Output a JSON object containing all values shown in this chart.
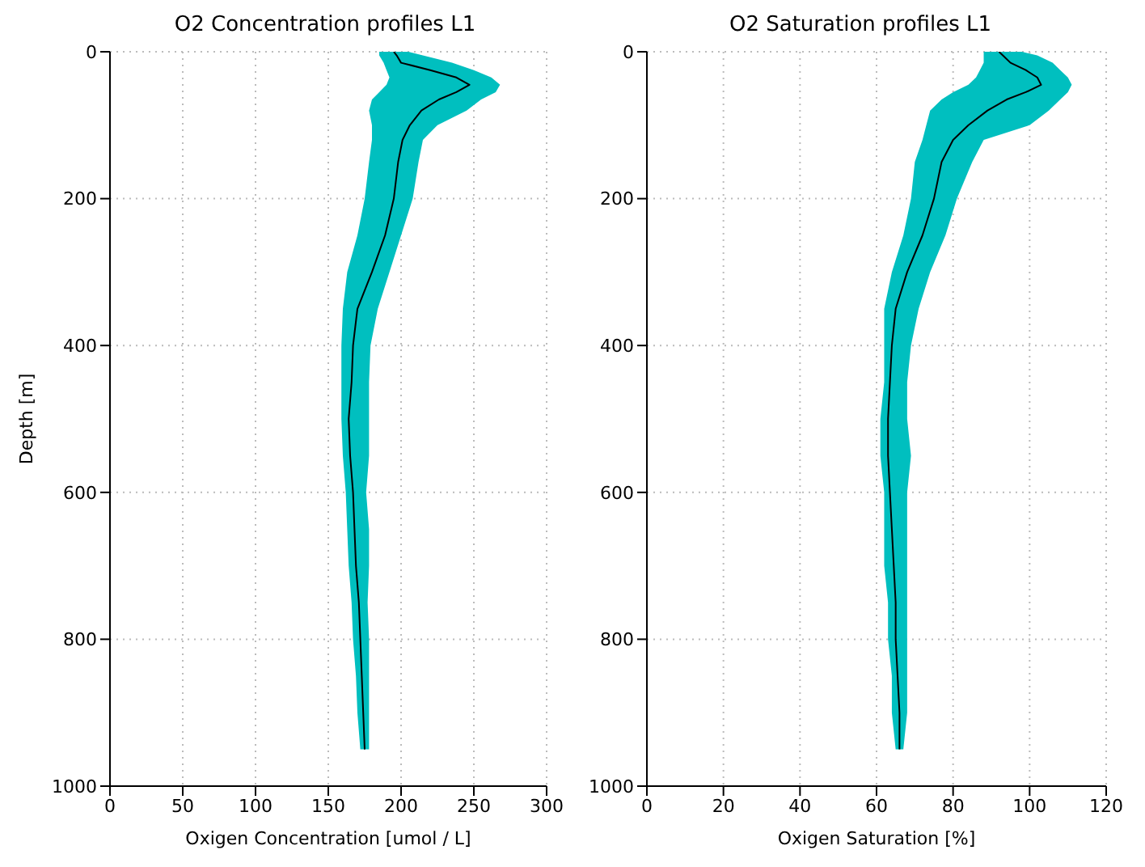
{
  "chart_data": [
    {
      "type": "line",
      "title": "O2 Concentration profiles L1",
      "xlabel": "Oxigen Concentration [umol / L]",
      "ylabel": "Depth [m]",
      "orientation": "horizontal",
      "grid": true,
      "marker": "none",
      "line_style": "solid",
      "x": [
        0,
        5,
        15,
        25,
        35,
        45,
        55,
        65,
        80,
        100,
        120,
        150,
        200,
        250,
        300,
        350,
        400,
        450,
        500,
        550,
        600,
        650,
        700,
        750,
        800,
        850,
        900,
        950
      ],
      "xlim": [
        0,
        300
      ],
      "xticks": [
        0,
        50,
        100,
        150,
        200,
        250,
        300
      ],
      "ylim": [
        1000,
        0
      ],
      "yticks": [
        0,
        200,
        400,
        600,
        800,
        1000
      ],
      "series": [
        {
          "type": "area",
          "color": "#00bfbf",
          "values": [
            null,
            null,
            null,
            null,
            null,
            null,
            null,
            null,
            null,
            null,
            null,
            null,
            null,
            null,
            null,
            null,
            null,
            null,
            null,
            null,
            null,
            null,
            null,
            null,
            null,
            null,
            null,
            null
          ],
          "lower": [
            185,
            185,
            188,
            190,
            192,
            190,
            185,
            180,
            178,
            180,
            180,
            178,
            175,
            170,
            163,
            160,
            159,
            159,
            159,
            160,
            162,
            163,
            164,
            166,
            167,
            169,
            170,
            172
          ],
          "upper": [
            205,
            215,
            235,
            250,
            262,
            268,
            265,
            255,
            245,
            225,
            215,
            212,
            208,
            200,
            192,
            184,
            179,
            178,
            178,
            178,
            176,
            178,
            178,
            177,
            178,
            178,
            178,
            178
          ]
        },
        {
          "color": "#000000",
          "values": [
            195,
            197,
            200,
            220,
            238,
            247,
            238,
            226,
            214,
            206,
            201,
            198,
            195,
            189,
            180,
            170,
            167,
            166,
            164,
            165,
            167,
            168,
            169,
            171,
            172,
            173,
            174,
            175
          ]
        }
      ]
    },
    {
      "type": "line",
      "title": "O2 Saturation profiles L1",
      "xlabel": "Oxigen Saturation [%]",
      "orientation": "horizontal",
      "grid": true,
      "marker": "none",
      "line_style": "solid",
      "x": [
        0,
        5,
        15,
        25,
        35,
        45,
        55,
        65,
        80,
        100,
        120,
        150,
        200,
        250,
        300,
        350,
        400,
        450,
        500,
        550,
        600,
        650,
        700,
        750,
        800,
        850,
        900,
        950
      ],
      "xlim": [
        0,
        120
      ],
      "xticks": [
        0,
        20,
        40,
        60,
        80,
        100,
        120
      ],
      "ylim": [
        1000,
        0
      ],
      "yticks": [
        0,
        200,
        400,
        600,
        800,
        1000
      ],
      "series": [
        {
          "type": "area",
          "color": "#00bfbf",
          "values": [
            null,
            null,
            null,
            null,
            null,
            null,
            null,
            null,
            null,
            null,
            null,
            null,
            null,
            null,
            null,
            null,
            null,
            null,
            null,
            null,
            null,
            null,
            null,
            null,
            null,
            null,
            null,
            null
          ],
          "lower": [
            88,
            88,
            88,
            87,
            86,
            84,
            80,
            77,
            74,
            73,
            72,
            70,
            69,
            67,
            64,
            62,
            62,
            62,
            61,
            61,
            62,
            62,
            62,
            63,
            63,
            64,
            64,
            65
          ],
          "upper": [
            98,
            102,
            106,
            108,
            110,
            111,
            110,
            108,
            105,
            100,
            88,
            85,
            81,
            78,
            74,
            71,
            69,
            68,
            68,
            69,
            68,
            68,
            68,
            68,
            68,
            68,
            68,
            67
          ]
        },
        {
          "color": "#000000",
          "values": [
            92,
            93,
            95,
            99,
            102,
            103,
            99,
            94,
            89,
            84,
            80,
            77,
            75,
            72,
            68,
            65,
            64,
            63.5,
            63,
            63,
            63.5,
            64,
            64.5,
            65,
            65,
            65.5,
            66,
            66
          ]
        }
      ]
    }
  ]
}
